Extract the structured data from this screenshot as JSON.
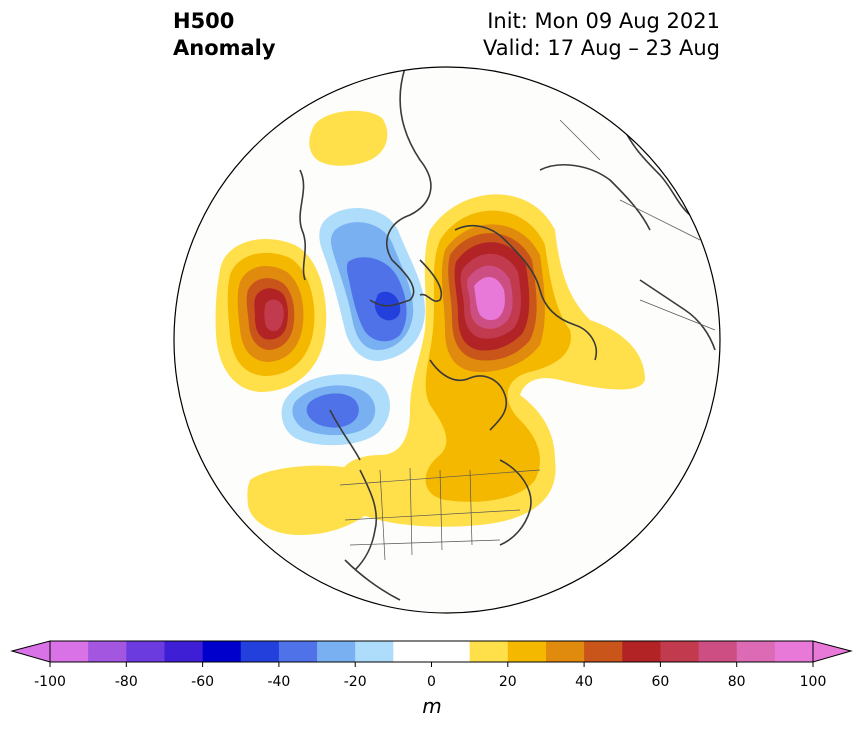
{
  "title": {
    "left_line1": "H500",
    "left_line2": "Anomaly",
    "right_line1": "Init: Mon 09 Aug 2021",
    "right_line2": "Valid: 17 Aug – 23 Aug"
  },
  "colorbar": {
    "unit": "m",
    "ticks": [
      "-100",
      "-80",
      "-60",
      "-40",
      "-20",
      "0",
      "20",
      "40",
      "60",
      "80",
      "100"
    ],
    "colors": [
      "#d872e6",
      "#a356e0",
      "#6b3be0",
      "#3e1fd6",
      "#0000cd",
      "#2340dd",
      "#4f72e8",
      "#79b0f2",
      "#aedcfb",
      "#ffffff",
      "#ffffff",
      "#ffe04a",
      "#f5b800",
      "#e08a0e",
      "#c9551a",
      "#b22325",
      "#c23a4e",
      "#cc4e82",
      "#dc6ab4",
      "#e879d8"
    ]
  },
  "map": {
    "projection": "north-polar-stereographic",
    "region": "Northern Hemisphere centered on North America",
    "anomalies": [
      {
        "name": "Greenland/Arctic ridge",
        "sign": "positive",
        "peak_m": 100
      },
      {
        "name": "Northeast Pacific ridge",
        "sign": "positive",
        "peak_m": 70
      },
      {
        "name": "Bering/Alaska trough",
        "sign": "negative",
        "peak_m": -60
      },
      {
        "name": "Gulf of Alaska trough",
        "sign": "negative",
        "peak_m": -40
      },
      {
        "name": "Eastern Canada ridge",
        "sign": "positive",
        "peak_m": 40
      },
      {
        "name": "Northern Europe ridge",
        "sign": "positive",
        "peak_m": 20
      }
    ]
  }
}
